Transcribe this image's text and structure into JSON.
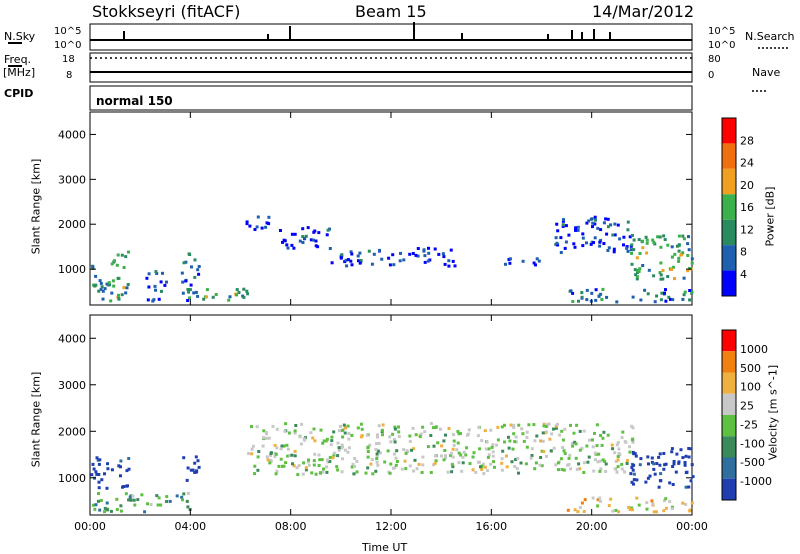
{
  "header": {
    "station": "Stokkseyri (fitACF)",
    "beam": "Beam 15",
    "date": "14/Mar/2012"
  },
  "top_panels": {
    "nsky_label": "N.Sky",
    "nsky_ticks": [
      "10^5",
      "10^0"
    ],
    "nsearch_label": "N.Search",
    "nsearch_ticks": [
      "10^5",
      "10^0"
    ],
    "freq_label_1": "Freq.",
    "freq_label_2": "[MHz]",
    "freq_ticks": [
      "18",
      "8"
    ],
    "nave_label": "Nave",
    "nave_ticks": [
      "80",
      "0"
    ],
    "cpid_label": "CPID",
    "mode_text": "normal 150"
  },
  "chart_data": [
    {
      "type": "heatmap",
      "name": "power",
      "ylabel": "Slant Range [km]",
      "xlabel": "",
      "y_ticks": [
        "1000",
        "2000",
        "3000",
        "4000"
      ],
      "ylim": [
        200,
        4500
      ],
      "xlim": [
        0,
        24
      ],
      "colorbar_label": "Power [dB]",
      "colorbar_ticks": [
        "28",
        "24",
        "20",
        "16",
        "12",
        "8",
        "4"
      ],
      "colors": [
        "#0000ff",
        "#1f5fb0",
        "#2a8a60",
        "#3cb04a",
        "#f0a020",
        "#f07010",
        "#ff0000"
      ],
      "regions": [
        {
          "t": [
            0.0,
            0.7
          ],
          "r": [
            300,
            1150
          ],
          "level": 2
        },
        {
          "t": [
            0.7,
            1.5
          ],
          "r": [
            300,
            1500
          ],
          "level": 3
        },
        {
          "t": [
            2.2,
            3.0
          ],
          "r": [
            300,
            1000
          ],
          "level": 1
        },
        {
          "t": [
            3.6,
            4.3
          ],
          "r": [
            300,
            1500
          ],
          "level": 2
        },
        {
          "t": [
            4.3,
            6.3
          ],
          "r": [
            300,
            600
          ],
          "level": 3
        },
        {
          "t": [
            6.2,
            7.5
          ],
          "r": [
            1900,
            2200
          ],
          "level": 1
        },
        {
          "t": [
            7.5,
            9.5
          ],
          "r": [
            1500,
            2000
          ],
          "level": 1
        },
        {
          "t": [
            9.5,
            14.5
          ],
          "r": [
            1100,
            1500
          ],
          "level": 1
        },
        {
          "t": [
            16.5,
            18.0
          ],
          "r": [
            1100,
            1300
          ],
          "level": 1
        },
        {
          "t": [
            18.5,
            21.6
          ],
          "r": [
            1400,
            2200
          ],
          "level": 1
        },
        {
          "t": [
            21.5,
            24.0
          ],
          "r": [
            800,
            1800
          ],
          "level": 3
        },
        {
          "t": [
            19.0,
            24.0
          ],
          "r": [
            300,
            600
          ],
          "level": 2
        }
      ]
    },
    {
      "type": "heatmap",
      "name": "velocity",
      "ylabel": "Slant Range [km]",
      "xlabel": "Time UT",
      "x_ticks": [
        "00:00",
        "04:00",
        "08:00",
        "12:00",
        "16:00",
        "20:00",
        "00:00"
      ],
      "y_ticks": [
        "1000",
        "2000",
        "3000",
        "4000"
      ],
      "ylim": [
        200,
        4500
      ],
      "xlim": [
        0,
        24
      ],
      "colorbar_label": "Velocity [m s^-1]",
      "colorbar_ticks": [
        "1000",
        "500",
        "100",
        "25",
        "-25",
        "-100",
        "-500",
        "-1000"
      ],
      "colors": [
        "#1f3fb0",
        "#2f6f9f",
        "#3a8a5a",
        "#5ec040",
        "#c8c8c8",
        "#f0b040",
        "#f08010",
        "#ff0000"
      ],
      "regions": [
        {
          "t": [
            0.0,
            1.5
          ],
          "r": [
            800,
            1500
          ],
          "level": 0
        },
        {
          "t": [
            0.0,
            4.0
          ],
          "r": [
            300,
            700
          ],
          "level": 3
        },
        {
          "t": [
            3.6,
            4.3
          ],
          "r": [
            900,
            1500
          ],
          "level": 0
        },
        {
          "t": [
            6.2,
            21.6
          ],
          "r": [
            1100,
            2200
          ],
          "level": 4
        },
        {
          "t": [
            21.5,
            24.0
          ],
          "r": [
            800,
            1700
          ],
          "level": 0
        },
        {
          "t": [
            19.0,
            24.0
          ],
          "r": [
            300,
            600
          ],
          "level": 5
        }
      ]
    }
  ]
}
